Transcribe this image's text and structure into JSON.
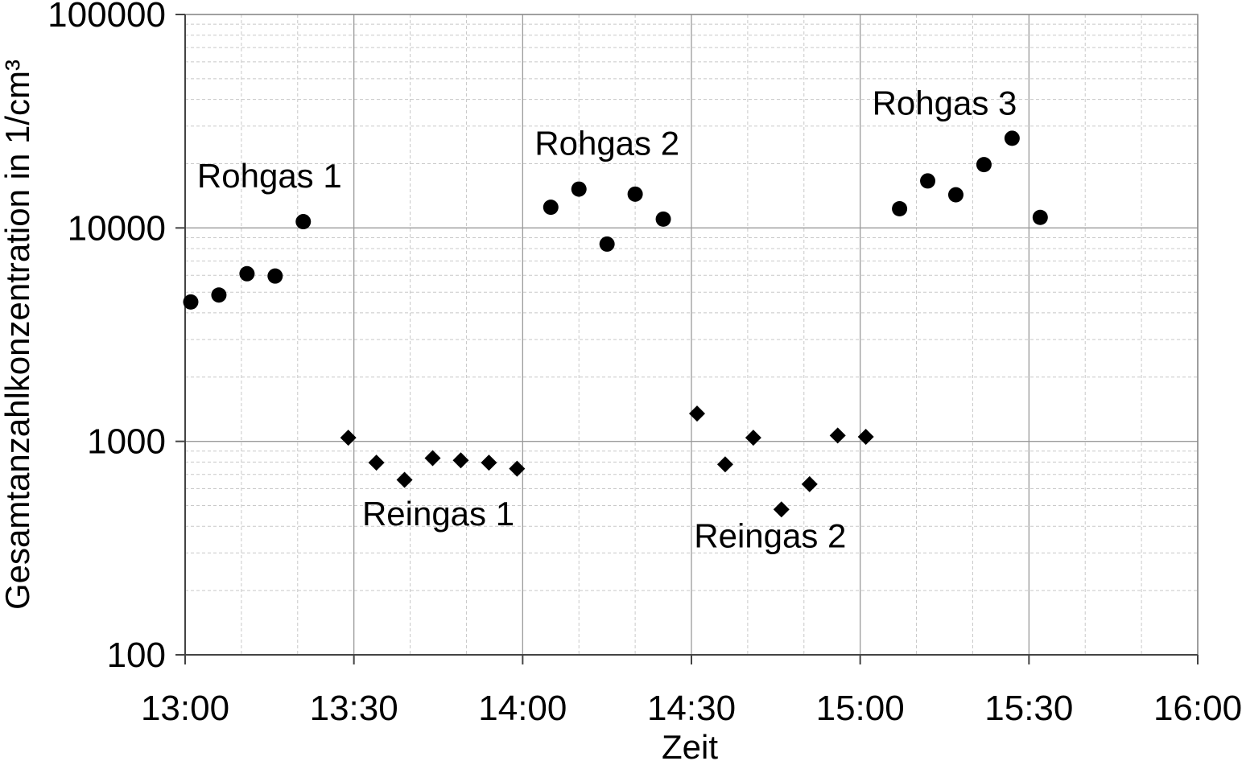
{
  "chart_data": {
    "type": "scatter",
    "title": "",
    "xlabel": "Zeit",
    "ylabel": "Gesamtanzahlkonzentration in 1/cm³",
    "yscale": "log",
    "ylim": [
      100,
      100000
    ],
    "xlim": [
      "13:00",
      "16:00"
    ],
    "x_ticks": [
      "13:00",
      "13:30",
      "14:00",
      "14:30",
      "15:00",
      "15:30",
      "16:00"
    ],
    "y_ticks": [
      "100",
      "1000",
      "10000",
      "100000"
    ],
    "grid": true,
    "legend": "none",
    "series": [
      {
        "marker": "circle",
        "points": [
          {
            "x": "13:01",
            "y": 4500
          },
          {
            "x": "13:06",
            "y": 4850
          },
          {
            "x": "13:11",
            "y": 6100
          },
          {
            "x": "13:16",
            "y": 5950
          },
          {
            "x": "13:21",
            "y": 10700
          },
          {
            "x": "14:05",
            "y": 12500
          },
          {
            "x": "14:10",
            "y": 15200
          },
          {
            "x": "14:15",
            "y": 8400
          },
          {
            "x": "14:20",
            "y": 14400
          },
          {
            "x": "14:25",
            "y": 11000
          },
          {
            "x": "15:07",
            "y": 12300
          },
          {
            "x": "15:12",
            "y": 16600
          },
          {
            "x": "15:17",
            "y": 14300
          },
          {
            "x": "15:22",
            "y": 19800
          },
          {
            "x": "15:27",
            "y": 26300
          },
          {
            "x": "15:32",
            "y": 11200
          }
        ]
      },
      {
        "marker": "diamond",
        "points": [
          {
            "x": "13:29",
            "y": 1040
          },
          {
            "x": "13:34",
            "y": 795
          },
          {
            "x": "13:39",
            "y": 660
          },
          {
            "x": "13:44",
            "y": 835
          },
          {
            "x": "13:49",
            "y": 815
          },
          {
            "x": "13:54",
            "y": 795
          },
          {
            "x": "13:59",
            "y": 745
          },
          {
            "x": "14:31",
            "y": 1350
          },
          {
            "x": "14:36",
            "y": 780
          },
          {
            "x": "14:41",
            "y": 1040
          },
          {
            "x": "14:46",
            "y": 480
          },
          {
            "x": "14:51",
            "y": 630
          },
          {
            "x": "14:56",
            "y": 1065
          },
          {
            "x": "15:01",
            "y": 1050
          }
        ]
      }
    ],
    "annotations": [
      {
        "text": "Rohgas 1",
        "x": "13:15",
        "y": 15500
      },
      {
        "text": "Rohgas 2",
        "x": "14:15",
        "y": 22000
      },
      {
        "text": "Rohgas 3",
        "x": "15:15",
        "y": 34000
      },
      {
        "text": "Reingas 1",
        "x": "13:45",
        "y": 405
      },
      {
        "text": "Reingas 2",
        "x": "14:44",
        "y": 318
      }
    ]
  }
}
